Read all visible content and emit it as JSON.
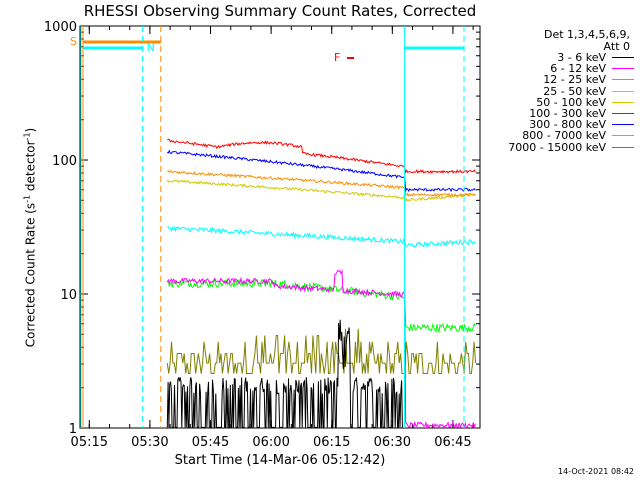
{
  "chart_data": {
    "type": "line",
    "title": "RHESSI Observing Summary Count Rates, Corrected",
    "xlabel": "Start Time (14-Mar-06 05:12:42)",
    "ylabel_main": "Corrected Count Rate (s",
    "ylabel_sup1": "-1",
    "ylabel_mid": " detector",
    "ylabel_sup2": "-1",
    "ylabel_end": ")",
    "y_scale": "log",
    "ylim": [
      1,
      1000
    ],
    "xlim_minutes": [
      0,
      99
    ],
    "x_ticks": [
      {
        "label": "05:15",
        "minute": 2.3
      },
      {
        "label": "05:30",
        "minute": 17.3
      },
      {
        "label": "05:45",
        "minute": 32.3
      },
      {
        "label": "06:00",
        "minute": 47.3
      },
      {
        "label": "06:15",
        "minute": 62.3
      },
      {
        "label": "06:30",
        "minute": 77.3
      },
      {
        "label": "06:45",
        "minute": 92.3
      }
    ],
    "y_ticks": [
      {
        "label": "1",
        "value": 1
      },
      {
        "label": "10",
        "value": 10
      },
      {
        "label": "100",
        "value": 100
      },
      {
        "label": "1000",
        "value": 1000
      }
    ],
    "legend_header": [
      "Det 1,3,4,5,6,9,",
      "Att 0"
    ],
    "series": [
      {
        "name": "3 - 6 keV",
        "color": "#000000"
      },
      {
        "name": "6 - 12 keV",
        "color": "#ff00ff"
      },
      {
        "name": "12 - 25 keV",
        "color": "#00ff00"
      },
      {
        "name": "25 - 50 keV",
        "color": "#00ffff"
      },
      {
        "name": "50 - 100 keV",
        "color": "#d2c800"
      },
      {
        "name": "100 - 300 keV",
        "color": "#ff0000"
      },
      {
        "name": "300 - 800 keV",
        "color": "#0000ff"
      },
      {
        "name": "800 - 7000 keV",
        "color": "#ff8c00"
      },
      {
        "name": "7000 - 15000 keV",
        "color": "#808000"
      }
    ],
    "annotations": [
      {
        "label": "S",
        "color": "#ff8c00"
      },
      {
        "label": "N",
        "color": "#00ffff"
      },
      {
        "label": "F",
        "color": "#ff0000"
      }
    ],
    "grid": false
  },
  "timestamp": "14-Oct-2021 08:42"
}
